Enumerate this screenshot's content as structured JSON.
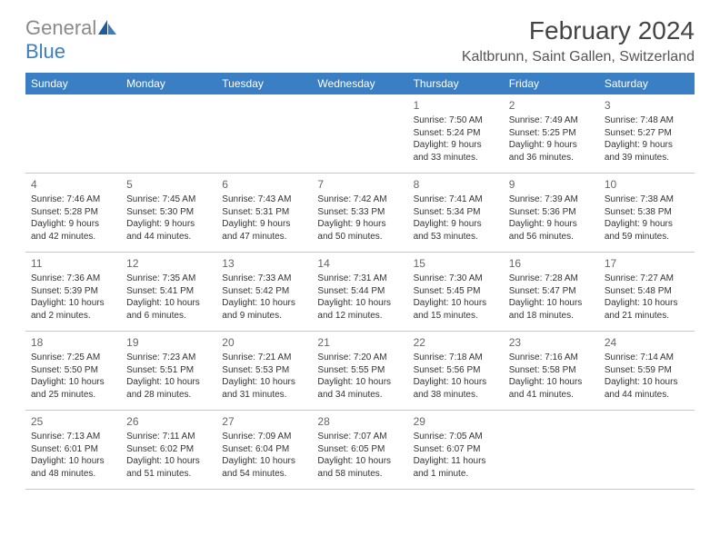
{
  "logo": {
    "gray": "General",
    "blue": "Blue"
  },
  "title": "February 2024",
  "location": "Kaltbrunn, Saint Gallen, Switzerland",
  "colors": {
    "header_bg": "#3a7fc4",
    "header_text": "#ffffff",
    "logo_gray": "#8a8a8a",
    "logo_blue": "#3a7fc4",
    "border": "#c7c7c7",
    "text": "#333333",
    "daynum": "#666666"
  },
  "dayNames": [
    "Sunday",
    "Monday",
    "Tuesday",
    "Wednesday",
    "Thursday",
    "Friday",
    "Saturday"
  ],
  "weeks": [
    [
      null,
      null,
      null,
      null,
      {
        "n": "1",
        "sr": "7:50 AM",
        "ss": "5:24 PM",
        "dl": "9 hours and 33 minutes."
      },
      {
        "n": "2",
        "sr": "7:49 AM",
        "ss": "5:25 PM",
        "dl": "9 hours and 36 minutes."
      },
      {
        "n": "3",
        "sr": "7:48 AM",
        "ss": "5:27 PM",
        "dl": "9 hours and 39 minutes."
      }
    ],
    [
      {
        "n": "4",
        "sr": "7:46 AM",
        "ss": "5:28 PM",
        "dl": "9 hours and 42 minutes."
      },
      {
        "n": "5",
        "sr": "7:45 AM",
        "ss": "5:30 PM",
        "dl": "9 hours and 44 minutes."
      },
      {
        "n": "6",
        "sr": "7:43 AM",
        "ss": "5:31 PM",
        "dl": "9 hours and 47 minutes."
      },
      {
        "n": "7",
        "sr": "7:42 AM",
        "ss": "5:33 PM",
        "dl": "9 hours and 50 minutes."
      },
      {
        "n": "8",
        "sr": "7:41 AM",
        "ss": "5:34 PM",
        "dl": "9 hours and 53 minutes."
      },
      {
        "n": "9",
        "sr": "7:39 AM",
        "ss": "5:36 PM",
        "dl": "9 hours and 56 minutes."
      },
      {
        "n": "10",
        "sr": "7:38 AM",
        "ss": "5:38 PM",
        "dl": "9 hours and 59 minutes."
      }
    ],
    [
      {
        "n": "11",
        "sr": "7:36 AM",
        "ss": "5:39 PM",
        "dl": "10 hours and 2 minutes."
      },
      {
        "n": "12",
        "sr": "7:35 AM",
        "ss": "5:41 PM",
        "dl": "10 hours and 6 minutes."
      },
      {
        "n": "13",
        "sr": "7:33 AM",
        "ss": "5:42 PM",
        "dl": "10 hours and 9 minutes."
      },
      {
        "n": "14",
        "sr": "7:31 AM",
        "ss": "5:44 PM",
        "dl": "10 hours and 12 minutes."
      },
      {
        "n": "15",
        "sr": "7:30 AM",
        "ss": "5:45 PM",
        "dl": "10 hours and 15 minutes."
      },
      {
        "n": "16",
        "sr": "7:28 AM",
        "ss": "5:47 PM",
        "dl": "10 hours and 18 minutes."
      },
      {
        "n": "17",
        "sr": "7:27 AM",
        "ss": "5:48 PM",
        "dl": "10 hours and 21 minutes."
      }
    ],
    [
      {
        "n": "18",
        "sr": "7:25 AM",
        "ss": "5:50 PM",
        "dl": "10 hours and 25 minutes."
      },
      {
        "n": "19",
        "sr": "7:23 AM",
        "ss": "5:51 PM",
        "dl": "10 hours and 28 minutes."
      },
      {
        "n": "20",
        "sr": "7:21 AM",
        "ss": "5:53 PM",
        "dl": "10 hours and 31 minutes."
      },
      {
        "n": "21",
        "sr": "7:20 AM",
        "ss": "5:55 PM",
        "dl": "10 hours and 34 minutes."
      },
      {
        "n": "22",
        "sr": "7:18 AM",
        "ss": "5:56 PM",
        "dl": "10 hours and 38 minutes."
      },
      {
        "n": "23",
        "sr": "7:16 AM",
        "ss": "5:58 PM",
        "dl": "10 hours and 41 minutes."
      },
      {
        "n": "24",
        "sr": "7:14 AM",
        "ss": "5:59 PM",
        "dl": "10 hours and 44 minutes."
      }
    ],
    [
      {
        "n": "25",
        "sr": "7:13 AM",
        "ss": "6:01 PM",
        "dl": "10 hours and 48 minutes."
      },
      {
        "n": "26",
        "sr": "7:11 AM",
        "ss": "6:02 PM",
        "dl": "10 hours and 51 minutes."
      },
      {
        "n": "27",
        "sr": "7:09 AM",
        "ss": "6:04 PM",
        "dl": "10 hours and 54 minutes."
      },
      {
        "n": "28",
        "sr": "7:07 AM",
        "ss": "6:05 PM",
        "dl": "10 hours and 58 minutes."
      },
      {
        "n": "29",
        "sr": "7:05 AM",
        "ss": "6:07 PM",
        "dl": "11 hours and 1 minute."
      },
      null,
      null
    ]
  ],
  "labels": {
    "sunrise": "Sunrise: ",
    "sunset": "Sunset: ",
    "daylight": "Daylight: "
  }
}
